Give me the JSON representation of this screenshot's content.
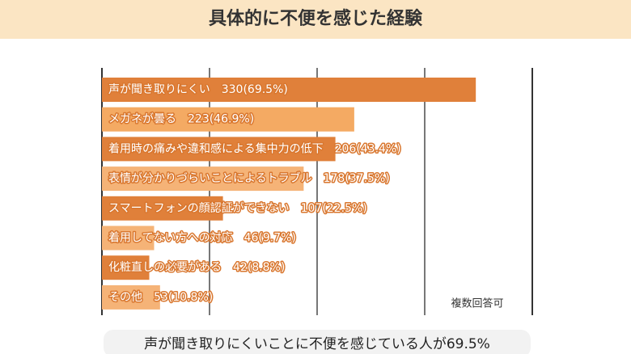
{
  "chart_data": {
    "type": "bar",
    "orientation": "horizontal",
    "title": "具体的に不便を感じた経験",
    "categories": [
      "声が聞き取りにくい",
      "メガネが曇る",
      "着用時の痛みや違和感による集中力の低下",
      "表情が分かりづらいことによるトラブル",
      "スマートフォンの顔認証ができない",
      "着用してない方への対応",
      "化粧直しの必要がある",
      "その他"
    ],
    "values": [
      69.5,
      46.9,
      43.4,
      37.5,
      22.5,
      9.7,
      8.8,
      10.8
    ],
    "value_labels": [
      "330(69.5%)",
      "223(46.9%)",
      "206(43.4%)",
      "178(37.5%)",
      "107(22.5%)",
      "46(9.7%)",
      "42(8.8%)",
      "53(10.8%)"
    ],
    "colors": [
      "#e0803a",
      "#f4aa63",
      "#e0803a",
      "#f5b377",
      "#e0803a",
      "#f5b377",
      "#e0803a",
      "#f5b377"
    ],
    "xlim": [
      0,
      80
    ],
    "xticks": [
      0,
      20,
      40,
      60,
      80
    ],
    "grid": true,
    "note": "複数回答可",
    "caption": "声が聞き取りにくいことに不便を感じている人が69.5%"
  }
}
